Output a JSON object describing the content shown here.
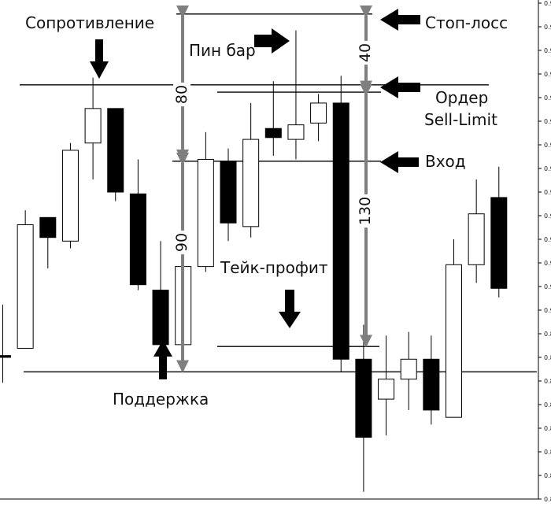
{
  "chart_data": {
    "type": "candlestick",
    "ylim": [
      0.8896,
      0.9169
    ],
    "y_ticks": [
      "0.91690",
      "0.91560",
      "0.91430",
      "0.91300",
      "0.91170",
      "0.91040",
      "0.90910",
      "0.90780",
      "0.90650",
      "0.90520",
      "0.90390",
      "0.90260",
      "0.90130",
      "0.90000",
      "0.89870",
      "0.89740",
      "0.89610",
      "0.89480",
      "0.89350",
      "0.89220",
      "0.89090",
      "0.88960"
    ],
    "candles": [
      {
        "o": 0.8975,
        "h": 0.9003,
        "l": 0.896,
        "c": 0.8974
      },
      {
        "o": 0.8979,
        "h": 0.9055,
        "l": 0.8979,
        "c": 0.9047
      },
      {
        "o": 0.9051,
        "h": 0.9051,
        "l": 0.9023,
        "c": 0.904
      },
      {
        "o": 0.9038,
        "h": 0.9092,
        "l": 0.9034,
        "c": 0.9088
      },
      {
        "o": 0.9092,
        "h": 0.9128,
        "l": 0.9072,
        "c": 0.9111
      },
      {
        "o": 0.9111,
        "h": 0.9111,
        "l": 0.906,
        "c": 0.9065
      },
      {
        "o": 0.9064,
        "h": 0.9083,
        "l": 0.9011,
        "c": 0.9014
      },
      {
        "o": 0.9011,
        "h": 0.9038,
        "l": 0.8975,
        "c": 0.8981
      },
      {
        "o": 0.8981,
        "h": 0.9024,
        "l": 0.8976,
        "c": 0.9024
      },
      {
        "o": 0.9024,
        "h": 0.9098,
        "l": 0.9021,
        "c": 0.9083
      },
      {
        "o": 0.9082,
        "h": 0.9089,
        "l": 0.9038,
        "c": 0.9048
      },
      {
        "o": 0.9046,
        "h": 0.9114,
        "l": 0.904,
        "c": 0.9094
      },
      {
        "o": 0.91,
        "h": 0.9126,
        "l": 0.9085,
        "c": 0.9095
      },
      {
        "o": 0.9094,
        "h": 0.9154,
        "l": 0.9083,
        "c": 0.9102
      },
      {
        "o": 0.9103,
        "h": 0.9119,
        "l": 0.9093,
        "c": 0.9114
      },
      {
        "o": 0.9114,
        "h": 0.9129,
        "l": 0.8966,
        "c": 0.8973
      },
      {
        "o": 0.8973,
        "h": 0.8992,
        "l": 0.89,
        "c": 0.893
      },
      {
        "o": 0.8951,
        "h": 0.8986,
        "l": 0.8931,
        "c": 0.8962
      },
      {
        "o": 0.8962,
        "h": 0.8988,
        "l": 0.8945,
        "c": 0.8973
      },
      {
        "o": 0.8973,
        "h": 0.8986,
        "l": 0.8937,
        "c": 0.8945
      },
      {
        "o": 0.8941,
        "h": 0.9039,
        "l": 0.8941,
        "c": 0.9025
      },
      {
        "o": 0.9025,
        "h": 0.9072,
        "l": 0.9015,
        "c": 0.9053
      },
      {
        "o": 0.9062,
        "h": 0.9079,
        "l": 0.9007,
        "c": 0.9012
      }
    ],
    "levels": {
      "resistance": 0.9124,
      "stop_loss": 0.9163,
      "order": 0.912,
      "entry": 0.9082,
      "take_profit": 0.898,
      "support": 0.8966
    },
    "annotations": {
      "resistance": "Сопротивление",
      "pin_bar": "Пин бар",
      "stop_loss": "Стоп-лосс",
      "order_line1": "Ордер",
      "order_line2": "Sell-Limit",
      "entry": "Вход",
      "take_profit": "Тейк-профит",
      "support": "Поддержка"
    },
    "measurements": {
      "m80": "80",
      "m90": "90",
      "m40": "40",
      "m130": "130"
    }
  }
}
